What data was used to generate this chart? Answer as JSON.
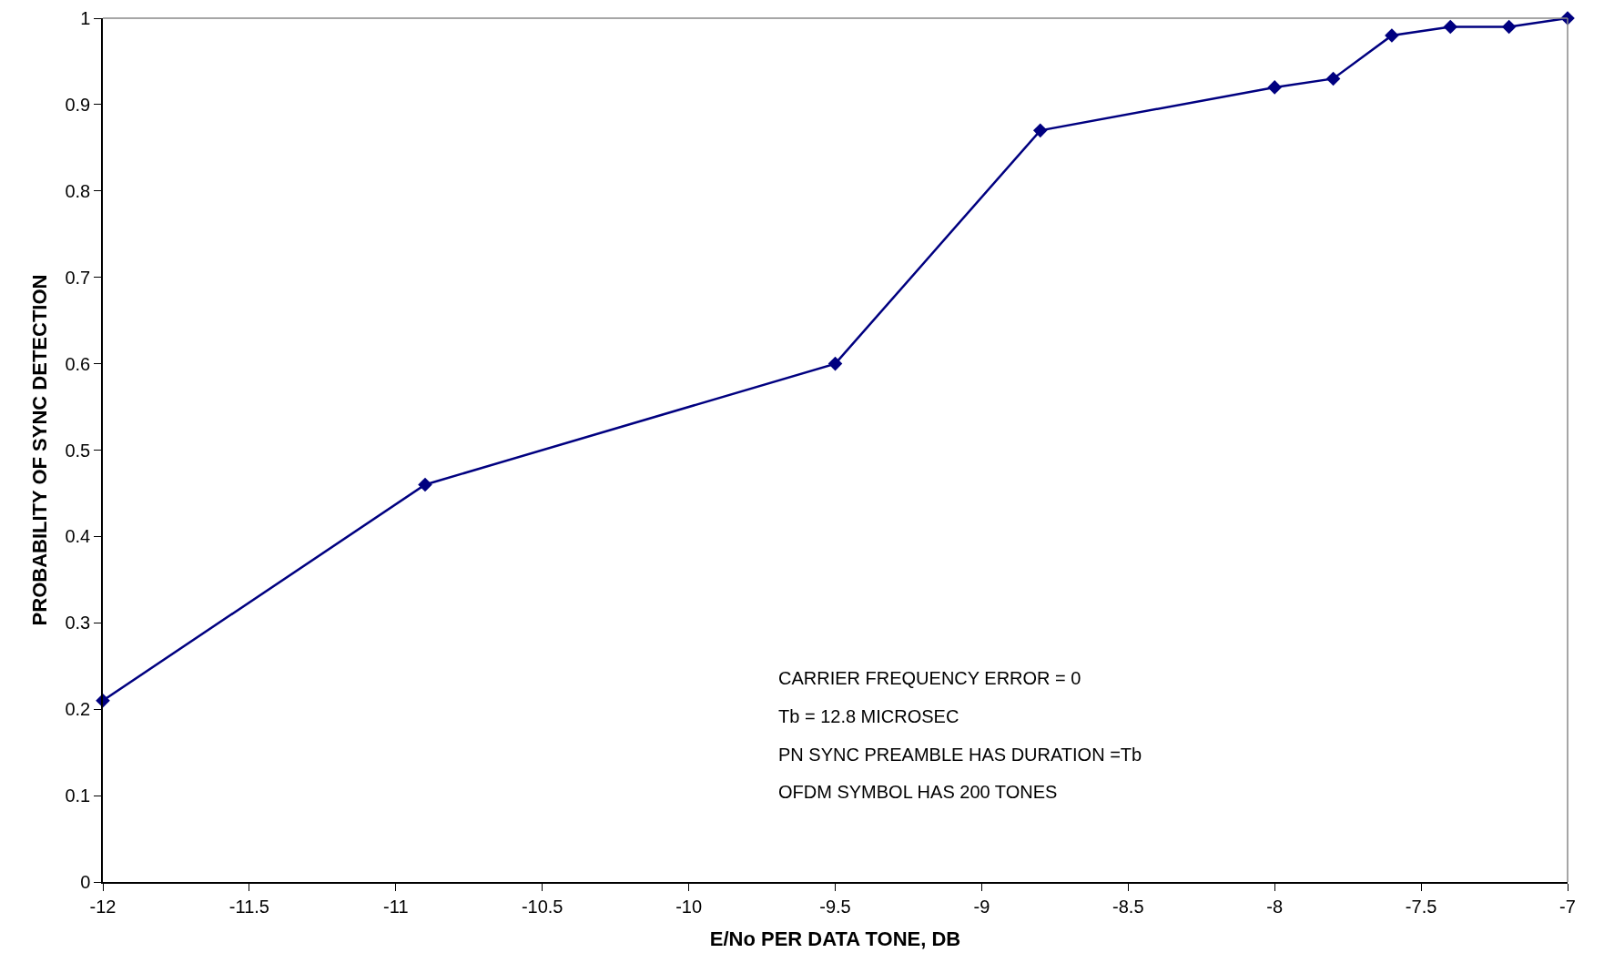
{
  "chart_data": {
    "type": "line",
    "xlabel": "E/No PER DATA TONE, DB",
    "ylabel": "PROBABILITY OF SYNC DETECTION",
    "x": [
      -12,
      -10.9,
      -9.5,
      -8.8,
      -8,
      -7.8,
      -7.6,
      -7.4,
      -7.2,
      -7
    ],
    "series": [
      {
        "color": "#000080",
        "values": [
          0.21,
          0.46,
          0.6,
          0.87,
          0.92,
          0.93,
          0.98,
          0.99,
          0.99,
          1
        ]
      }
    ],
    "xlim": [
      -12,
      -7
    ],
    "xticks": [
      -12,
      -11.5,
      -11,
      -10.5,
      -10,
      -9.5,
      -9,
      -8.5,
      -8,
      -7.5,
      -7
    ],
    "ylim": [
      0,
      1
    ],
    "yticks": [
      0,
      0.1,
      0.2,
      0.3,
      0.4,
      0.5,
      0.6,
      0.7,
      0.8,
      0.9,
      1
    ],
    "grid": false,
    "marker": "diamond",
    "line_style": "solid",
    "annotations": [
      "CARRIER FREQUENCY ERROR = 0",
      "Tb = 12.8 MICROSEC",
      "PN SYNC PREAMBLE HAS DURATION =Tb",
      "OFDM SYMBOL HAS 200 TONES"
    ]
  }
}
